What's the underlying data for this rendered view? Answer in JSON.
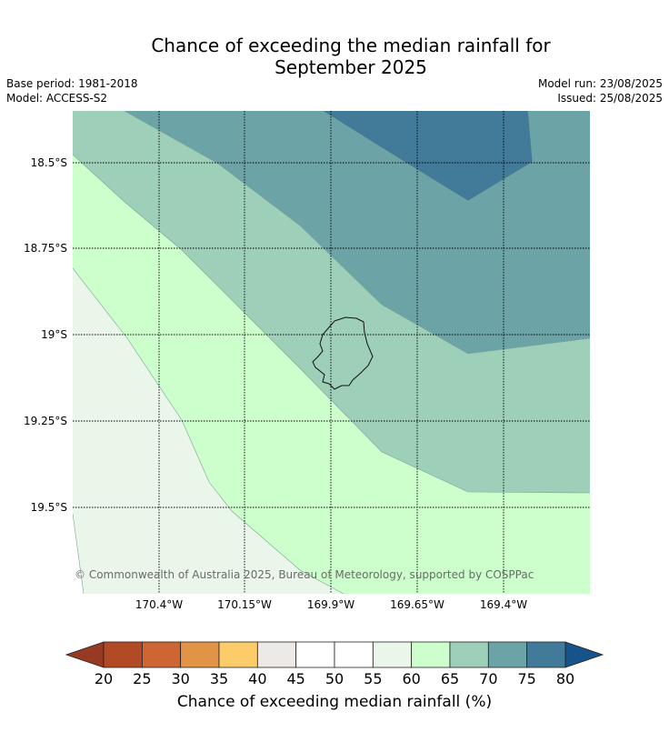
{
  "title_line1": "Chance of exceeding the median rainfall for",
  "title_line2": "September 2025",
  "base_period": "Base period: 1981-2018",
  "model": "Model: ACCESS-S2",
  "model_run": "Model run: 23/08/2025",
  "issued": "Issued: 25/08/2025",
  "copyright": "© Commonwealth of Australia 2025, Bureau of Meteorology, supported by COSPPac",
  "map": {
    "lat_labels": [
      "18.5°S",
      "18.75°S",
      "19°S",
      "19.25°S",
      "19.5°S"
    ],
    "lon_labels": [
      "170.4°W",
      "170.15°W",
      "169.9°W",
      "169.65°W",
      "169.4°W"
    ],
    "island_label": "coastline"
  },
  "colorbar": {
    "label": "Chance of exceeding median rainfall (%)",
    "ticks": [
      "20",
      "25",
      "30",
      "35",
      "40",
      "45",
      "50",
      "55",
      "60",
      "65",
      "70",
      "75",
      "80"
    ],
    "colors": [
      "#b24a26",
      "#cd6632",
      "#e29446",
      "#fdcc6a",
      "#ece9e6",
      "#ffffff",
      "#ffffff",
      "#e9f6e9",
      "#ccffcc",
      "#9ecfb9",
      "#6ca3a6",
      "#427a99"
    ],
    "under_color": "#983923",
    "over_color": "#17538b"
  }
}
